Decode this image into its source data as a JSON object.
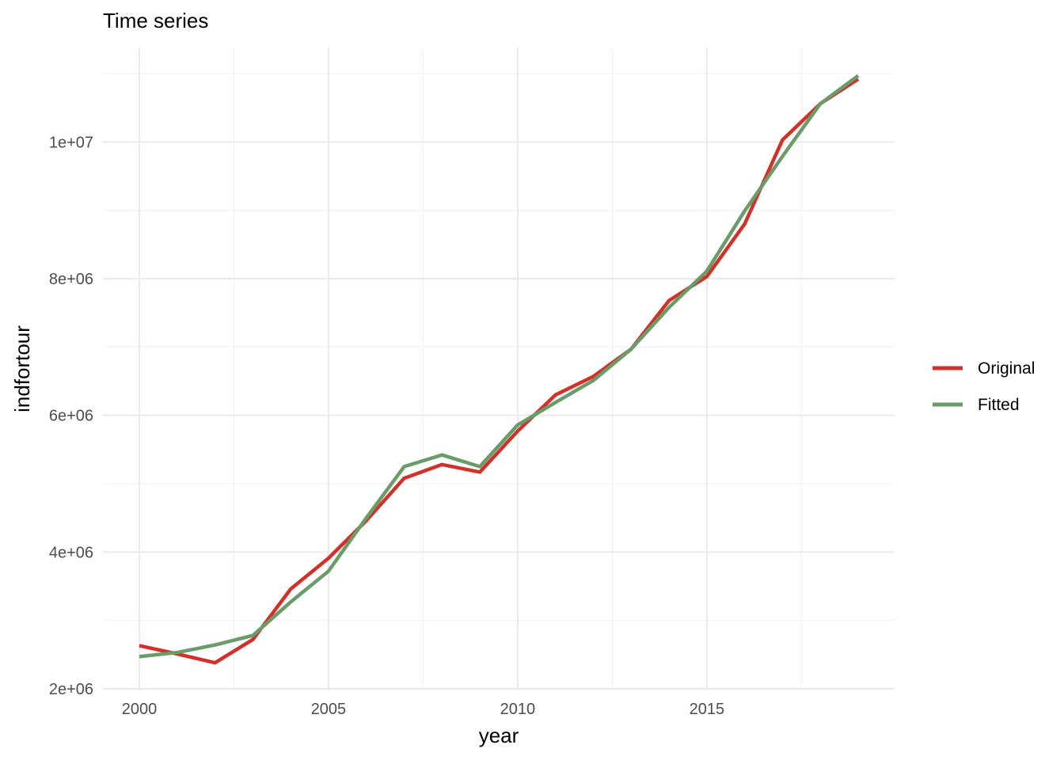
{
  "chart_data": {
    "type": "line",
    "title": "Time series",
    "xlabel": "year",
    "ylabel": "indfortour",
    "x": [
      2000,
      2001,
      2002,
      2003,
      2004,
      2005,
      2006,
      2007,
      2008,
      2009,
      2010,
      2011,
      2012,
      2013,
      2014,
      2015,
      2016,
      2017,
      2018,
      2019
    ],
    "xlim": [
      2000,
      2019
    ],
    "ylim": [
      2000000,
      11000000
    ],
    "x_ticks": [
      2000,
      2005,
      2010,
      2015
    ],
    "x_tick_labels": [
      "2000",
      "2005",
      "2010",
      "2015"
    ],
    "y_ticks": [
      2000000,
      4000000,
      6000000,
      8000000,
      10000000
    ],
    "y_tick_labels": [
      "2e+06",
      "4e+06",
      "6e+06",
      "8e+06",
      "1e+07"
    ],
    "grid": true,
    "legend_position": "right",
    "series": [
      {
        "name": "Original",
        "color": "#d3302a",
        "values": [
          2630000,
          2510000,
          2380000,
          2720000,
          3460000,
          3910000,
          4460000,
          5080000,
          5280000,
          5170000,
          5770000,
          6300000,
          6570000,
          6970000,
          7680000,
          8030000,
          8800000,
          10030000,
          10560000,
          10920000
        ]
      },
      {
        "name": "Fitted",
        "color": "#6a9c6a",
        "values": [
          2470000,
          2530000,
          2640000,
          2780000,
          3270000,
          3720000,
          4500000,
          5250000,
          5420000,
          5250000,
          5860000,
          6190000,
          6510000,
          6970000,
          7580000,
          8110000,
          8990000,
          9790000,
          10560000,
          10970000
        ]
      }
    ]
  }
}
